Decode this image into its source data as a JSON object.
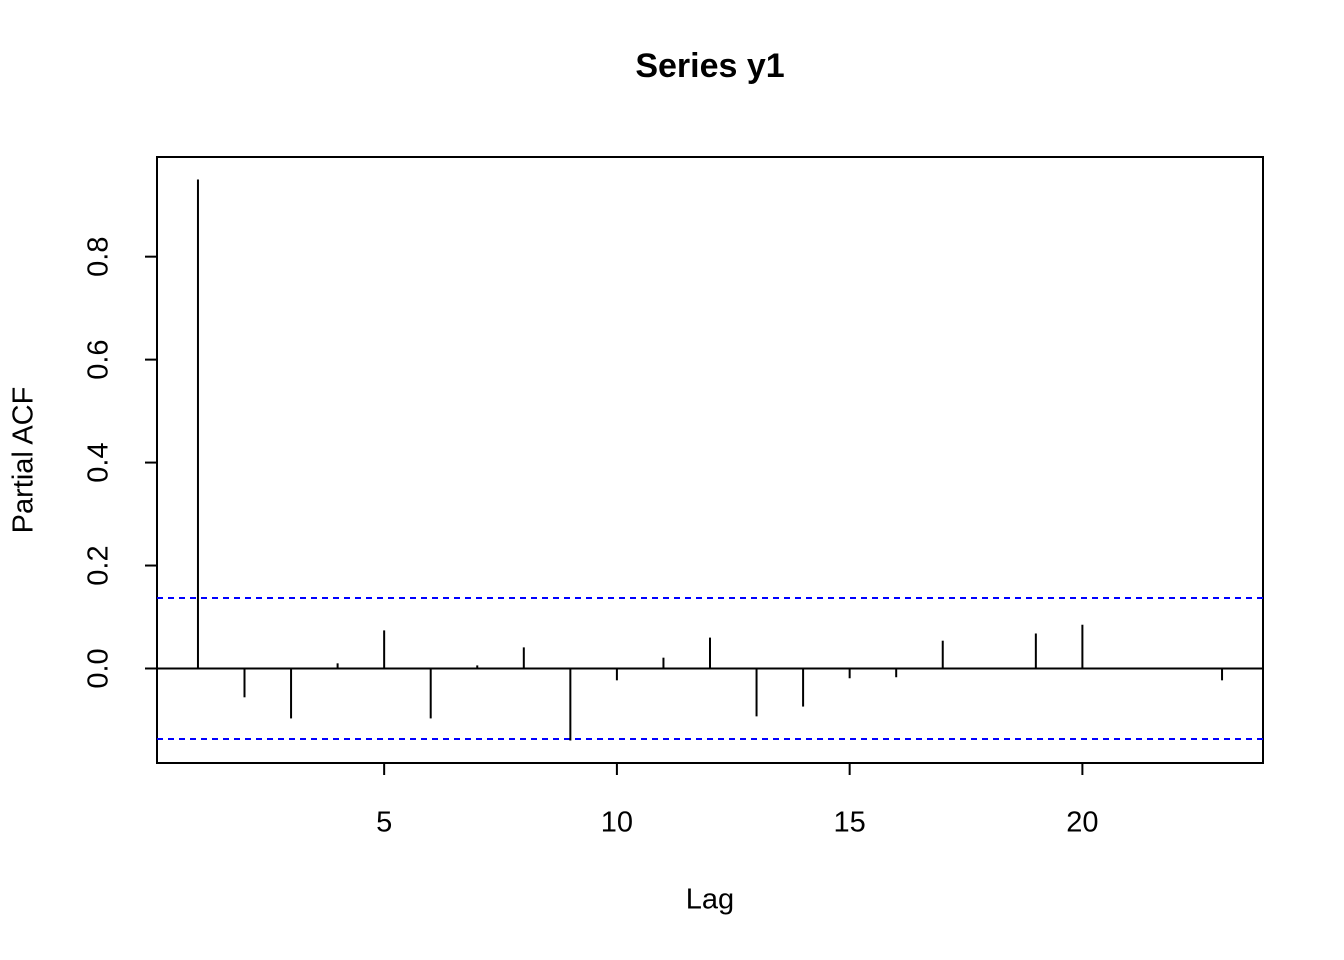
{
  "chart_data": {
    "type": "pacf",
    "title": "Series  y1",
    "x_label": "Lag",
    "y_label": "Partial ACF",
    "x": [
      1,
      2,
      3,
      4,
      5,
      6,
      7,
      8,
      9,
      10,
      11,
      12,
      13,
      14,
      15,
      16,
      17,
      18,
      19,
      20,
      21,
      22,
      23
    ],
    "values": [
      0.95,
      -0.056,
      -0.097,
      0.01,
      0.074,
      -0.097,
      0.006,
      0.041,
      -0.14,
      -0.023,
      0.021,
      0.06,
      -0.093,
      -0.074,
      -0.019,
      -0.017,
      0.054,
      0.001,
      0.068,
      0.085,
      0.001,
      0.001,
      -0.023
    ],
    "color": "#000000",
    "xlim": [
      0.12,
      23.88
    ],
    "xticks": [
      5,
      10,
      15,
      20
    ],
    "ylim": [
      -0.1836,
      0.9936
    ],
    "yticks": [
      {
        "value": 0,
        "label": "0.0"
      },
      0.2,
      0.4,
      0.6,
      0.8
    ],
    "hline": 0,
    "ci_lines": [
      0.137,
      -0.137
    ],
    "ci_color": "#0000ff"
  }
}
